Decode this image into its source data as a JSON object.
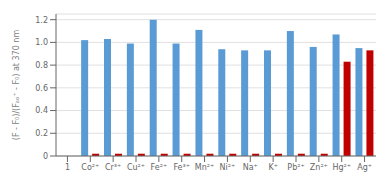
{
  "chart_data": {
    "type": "bar",
    "categories": [
      "1",
      "Co²⁺",
      "Cr³⁺",
      "Cu²⁺",
      "Fe²⁺",
      "Fe³⁺",
      "Mn²⁺",
      "Ni²⁺",
      "Na⁺",
      "K⁺",
      "Pb²⁺",
      "Zn²⁺",
      "Hg²⁺",
      "Ag⁺"
    ],
    "series": [
      {
        "color": "#5b9bd5",
        "values": [
          0.0,
          1.02,
          1.03,
          0.99,
          1.2,
          0.99,
          1.11,
          0.94,
          0.93,
          0.93,
          1.1,
          0.96,
          1.07,
          0.95
        ]
      },
      {
        "color": "#c00000",
        "values": [
          0.0,
          0.02,
          0.02,
          0.02,
          0.02,
          0.02,
          0.02,
          0.02,
          0.02,
          0.02,
          0.02,
          0.02,
          0.83,
          0.93
        ]
      }
    ],
    "ylabel": "(F - F₀)/(Fₐₒ⁺ - F₀) at 370 nm",
    "ylim": [
      0,
      1.25
    ],
    "yticks": [
      0,
      0.2,
      0.4,
      0.6,
      0.8,
      {
        "value": 1,
        "label": "1.0"
      },
      1.2
    ],
    "grid": true
  }
}
